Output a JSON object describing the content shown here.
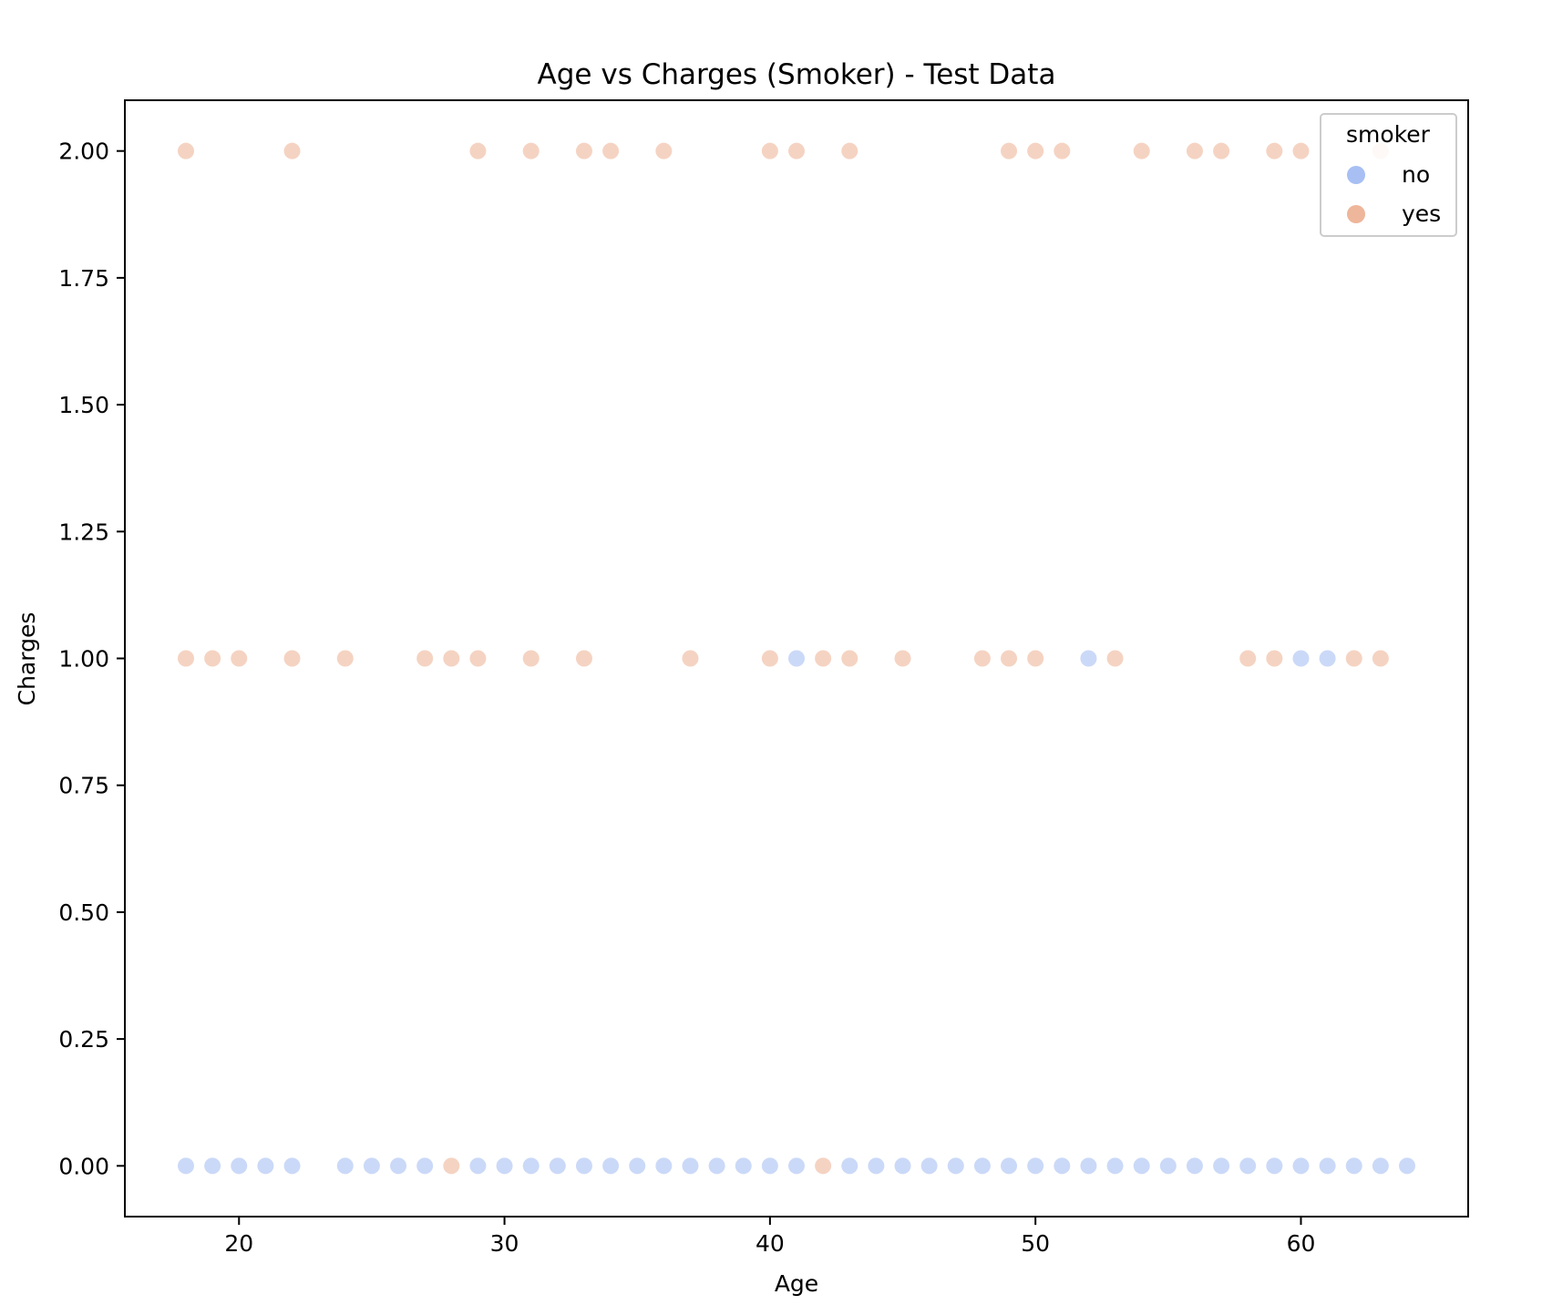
{
  "chart_data": {
    "type": "scatter",
    "title": "Age vs Charges (Smoker) - Test Data",
    "xlabel": "Age",
    "ylabel": "Charges",
    "xlim": [
      15.7,
      66.3
    ],
    "ylim": [
      -0.1,
      2.1
    ],
    "xticks": [
      20,
      30,
      40,
      50,
      60
    ],
    "xtick_labels": [
      "20",
      "30",
      "40",
      "50",
      "60"
    ],
    "yticks": [
      0,
      0.25,
      0.5,
      0.75,
      1.0,
      1.25,
      1.5,
      1.75,
      2.0
    ],
    "ytick_labels": [
      "0.00",
      "0.25",
      "0.50",
      "0.75",
      "1.00",
      "1.25",
      "1.50",
      "1.75",
      "2.00"
    ],
    "grid": false,
    "legend": {
      "title": "smoker",
      "position": "top-right"
    },
    "series": [
      {
        "name": "no",
        "color": "#a8bff4",
        "points": [
          [
            18,
            0
          ],
          [
            19,
            0
          ],
          [
            20,
            0
          ],
          [
            21,
            0
          ],
          [
            22,
            0
          ],
          [
            24,
            0
          ],
          [
            25,
            0
          ],
          [
            26,
            0
          ],
          [
            27,
            0
          ],
          [
            29,
            0
          ],
          [
            30,
            0
          ],
          [
            31,
            0
          ],
          [
            32,
            0
          ],
          [
            33,
            0
          ],
          [
            34,
            0
          ],
          [
            35,
            0
          ],
          [
            36,
            0
          ],
          [
            37,
            0
          ],
          [
            38,
            0
          ],
          [
            39,
            0
          ],
          [
            40,
            0
          ],
          [
            41,
            0
          ],
          [
            43,
            0
          ],
          [
            44,
            0
          ],
          [
            45,
            0
          ],
          [
            46,
            0
          ],
          [
            47,
            0
          ],
          [
            48,
            0
          ],
          [
            49,
            0
          ],
          [
            50,
            0
          ],
          [
            51,
            0
          ],
          [
            52,
            0
          ],
          [
            53,
            0
          ],
          [
            54,
            0
          ],
          [
            55,
            0
          ],
          [
            56,
            0
          ],
          [
            57,
            0
          ],
          [
            58,
            0
          ],
          [
            59,
            0
          ],
          [
            60,
            0
          ],
          [
            61,
            0
          ],
          [
            62,
            0
          ],
          [
            63,
            0
          ],
          [
            64,
            0
          ],
          [
            41,
            1
          ],
          [
            52,
            1
          ],
          [
            60,
            1
          ],
          [
            61,
            1
          ]
        ]
      },
      {
        "name": "yes",
        "color": "#eeb69a",
        "points": [
          [
            28,
            0
          ],
          [
            42,
            0
          ],
          [
            18,
            1
          ],
          [
            19,
            1
          ],
          [
            20,
            1
          ],
          [
            22,
            1
          ],
          [
            24,
            1
          ],
          [
            27,
            1
          ],
          [
            28,
            1
          ],
          [
            29,
            1
          ],
          [
            31,
            1
          ],
          [
            33,
            1
          ],
          [
            37,
            1
          ],
          [
            40,
            1
          ],
          [
            42,
            1
          ],
          [
            43,
            1
          ],
          [
            45,
            1
          ],
          [
            48,
            1
          ],
          [
            49,
            1
          ],
          [
            50,
            1
          ],
          [
            53,
            1
          ],
          [
            58,
            1
          ],
          [
            59,
            1
          ],
          [
            62,
            1
          ],
          [
            63,
            1
          ],
          [
            18,
            2
          ],
          [
            22,
            2
          ],
          [
            29,
            2
          ],
          [
            31,
            2
          ],
          [
            33,
            2
          ],
          [
            34,
            2
          ],
          [
            36,
            2
          ],
          [
            40,
            2
          ],
          [
            41,
            2
          ],
          [
            43,
            2
          ],
          [
            49,
            2
          ],
          [
            50,
            2
          ],
          [
            51,
            2
          ],
          [
            54,
            2
          ],
          [
            56,
            2
          ],
          [
            57,
            2
          ],
          [
            59,
            2
          ],
          [
            60,
            2
          ],
          [
            63,
            2
          ]
        ]
      }
    ]
  }
}
